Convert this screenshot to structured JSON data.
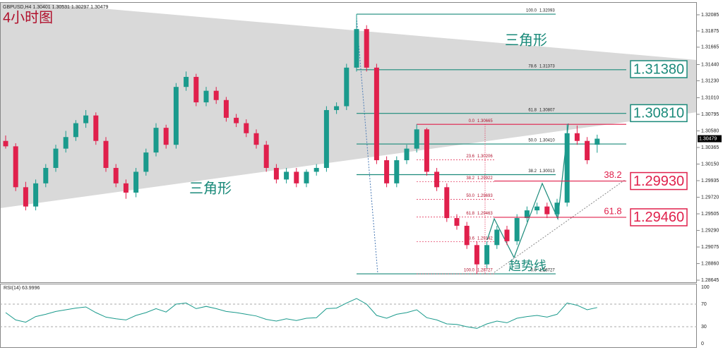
{
  "chart_data": {
    "type": "candlestick",
    "title": "4小时图",
    "header": "GBPUSD,H4  1.30401 1.30531 1.30297 1.30479",
    "ylim": [
      1.28618,
      1.32231
    ],
    "yticks": [
      1.32085,
      1.31875,
      1.31665,
      {
        "value": 1.3144,
        "label": "1.31440"
      },
      {
        "value": 1.3123,
        "label": "1.31230"
      },
      {
        "value": 1.3101,
        "label": "1.31010"
      },
      1.30795,
      {
        "value": 1.3058,
        "label": "1.30580"
      },
      1.30365,
      {
        "value": 1.3015,
        "label": "1.30150"
      },
      1.29935,
      {
        "value": 1.2972,
        "label": "1.29720"
      },
      1.29505,
      {
        "value": 1.2929,
        "label": "1.29290"
      },
      1.29075,
      {
        "value": 1.2886,
        "label": "1.28860"
      },
      1.28645
    ],
    "up_color": "#1a9a8c",
    "down_color": "#e0204c",
    "ohlc": {
      "open": [
        1.3045,
        1.3038,
        1.2985,
        1.296,
        1.299,
        1.301,
        1.3035,
        1.305,
        1.3068,
        1.3078,
        1.3045,
        1.301,
        1.299,
        1.2978,
        1.3005,
        1.303,
        1.3062,
        1.304,
        1.3115,
        1.3128,
        1.3095,
        1.311,
        1.3098,
        1.3075,
        1.3068,
        1.3055,
        1.304,
        1.301,
        1.2995,
        1.3005,
        1.299,
        1.3005,
        1.301,
        1.3085,
        1.309,
        1.314,
        1.319,
        1.314,
        1.302,
        1.299,
        1.302,
        1.3035,
        1.306,
        1.3005,
        1.2985,
        1.2945,
        1.2935,
        1.291,
        1.2885,
        1.291,
        1.293,
        1.2915,
        1.2945,
        1.2955,
        1.296,
        1.295,
        1.2965,
        1.3055,
        1.3045,
        1.30401
      ],
      "high": [
        1.3052,
        1.3042,
        1.2992,
        1.2995,
        1.3015,
        1.304,
        1.3058,
        1.3072,
        1.3085,
        1.3082,
        1.305,
        1.3015,
        1.2995,
        1.301,
        1.3035,
        1.3068,
        1.3066,
        1.312,
        1.3135,
        1.3132,
        1.3115,
        1.3115,
        1.3102,
        1.308,
        1.3073,
        1.306,
        1.3045,
        1.3015,
        1.301,
        1.301,
        1.3008,
        1.3015,
        1.309,
        1.3095,
        1.3145,
        1.32093,
        1.3195,
        1.3145,
        1.3025,
        1.3025,
        1.304,
        1.30665,
        1.3062,
        1.301,
        1.299,
        1.295,
        1.294,
        1.2915,
        1.2915,
        1.2935,
        1.2935,
        1.295,
        1.296,
        1.2965,
        1.2965,
        1.297,
        1.3067,
        1.3065,
        1.305,
        1.30531
      ],
      "low": [
        1.3035,
        1.298,
        1.2955,
        1.2955,
        1.2985,
        1.3005,
        1.303,
        1.3045,
        1.3062,
        1.304,
        1.3005,
        1.2985,
        1.297,
        1.2972,
        1.3,
        1.3025,
        1.3035,
        1.3035,
        1.311,
        1.309,
        1.309,
        1.3093,
        1.307,
        1.3063,
        1.305,
        1.3035,
        1.3005,
        1.299,
        1.299,
        1.2985,
        1.2985,
        1.3,
        1.3005,
        1.308,
        1.3085,
        1.3135,
        1.3135,
        1.3015,
        1.2985,
        1.2985,
        1.3015,
        1.303,
        1.3,
        1.298,
        1.294,
        1.293,
        1.2905,
        1.28727,
        1.288,
        1.2905,
        1.291,
        1.291,
        1.294,
        1.295,
        1.2945,
        1.2945,
        1.296,
        1.304,
        1.3015,
        1.30297
      ],
      "close": [
        1.3038,
        1.2985,
        1.296,
        1.299,
        1.301,
        1.3035,
        1.305,
        1.3068,
        1.3078,
        1.3045,
        1.301,
        1.299,
        1.2978,
        1.3005,
        1.303,
        1.3062,
        1.304,
        1.3115,
        1.3128,
        1.3095,
        1.311,
        1.3098,
        1.3075,
        1.3068,
        1.3055,
        1.304,
        1.301,
        1.2995,
        1.3005,
        1.299,
        1.3005,
        1.301,
        1.3085,
        1.309,
        1.314,
        1.319,
        1.314,
        1.302,
        1.299,
        1.302,
        1.3035,
        1.306,
        1.3005,
        1.2985,
        1.2945,
        1.2935,
        1.291,
        1.2885,
        1.291,
        1.293,
        1.2915,
        1.2945,
        1.2955,
        1.296,
        1.295,
        1.2965,
        1.3055,
        1.3045,
        1.302,
        1.30479
      ]
    },
    "fib_left": [
      {
        "level": "100.0",
        "price": {
          "value": 1.32093,
          "label": "1.32093"
        },
        "long": false
      },
      {
        "level": "78.6",
        "price": {
          "value": 1.31373,
          "label": "1.31373"
        },
        "long": true
      },
      {
        "level": "61.8",
        "price": {
          "value": 1.30807,
          "label": "1.30807"
        },
        "long": true
      },
      {
        "level": "50.0",
        "price": {
          "value": 1.3041,
          "label": "1.30410"
        },
        "long": true
      },
      {
        "level": "38.2",
        "price": {
          "value": 1.30013,
          "label": "1.30013"
        },
        "long": false
      },
      {
        "level": "0.0",
        "price": {
          "value": 1.28727,
          "label": "1.28727"
        },
        "long": false
      }
    ],
    "fib_mid": [
      {
        "level": "0.0",
        "price": {
          "value": 1.30665,
          "label": "1.30665"
        }
      },
      {
        "level": "23.6",
        "price": {
          "value": 1.30206,
          "label": "1.30206"
        }
      },
      {
        "level": "38.2",
        "price": {
          "value": 1.29922,
          "label": "1.29922"
        }
      },
      {
        "level": "50.0",
        "price": {
          "value": 1.29693,
          "label": "1.29693"
        }
      },
      {
        "level": "61.8",
        "price": {
          "value": 1.29463,
          "label": "1.29463"
        }
      },
      {
        "level": "78.6",
        "price": {
          "value": 1.29142,
          "label": "1.29142"
        }
      },
      {
        "level": "100.0",
        "price": {
          "value": 1.28727,
          "label": "1.28727"
        }
      }
    ],
    "levels": [
      {
        "value": 1.3138,
        "label": "1.31380",
        "color": "#1a8a7a"
      },
      {
        "value": 1.3081,
        "label": "1.30810",
        "color": "#1a8a7a"
      },
      {
        "value": 1.2993,
        "label": "1.29930",
        "color": "#e0204c",
        "tag": "38.2"
      },
      {
        "value": 1.2946,
        "label": "1.29460",
        "color": "#e0204c",
        "tag": "61.8"
      }
    ],
    "annotations": [
      "三角形",
      "三角形",
      "趋势线"
    ],
    "rsi": {
      "label": "RSI(14) 63.9996",
      "ylim": [
        0,
        100
      ],
      "yticks": [
        100,
        70,
        30,
        0
      ],
      "color": "#1a9a8c",
      "values": [
        55,
        42,
        38,
        48,
        52,
        57,
        60,
        63,
        65,
        55,
        47,
        44,
        42,
        50,
        55,
        62,
        56,
        70,
        72,
        62,
        66,
        62,
        57,
        55,
        52,
        49,
        43,
        40,
        44,
        41,
        45,
        46,
        62,
        63,
        72,
        80,
        70,
        50,
        45,
        52,
        55,
        60,
        46,
        42,
        35,
        34,
        30,
        27,
        35,
        40,
        37,
        45,
        48,
        50,
        47,
        52,
        72,
        68,
        60,
        63.9996
      ]
    }
  }
}
